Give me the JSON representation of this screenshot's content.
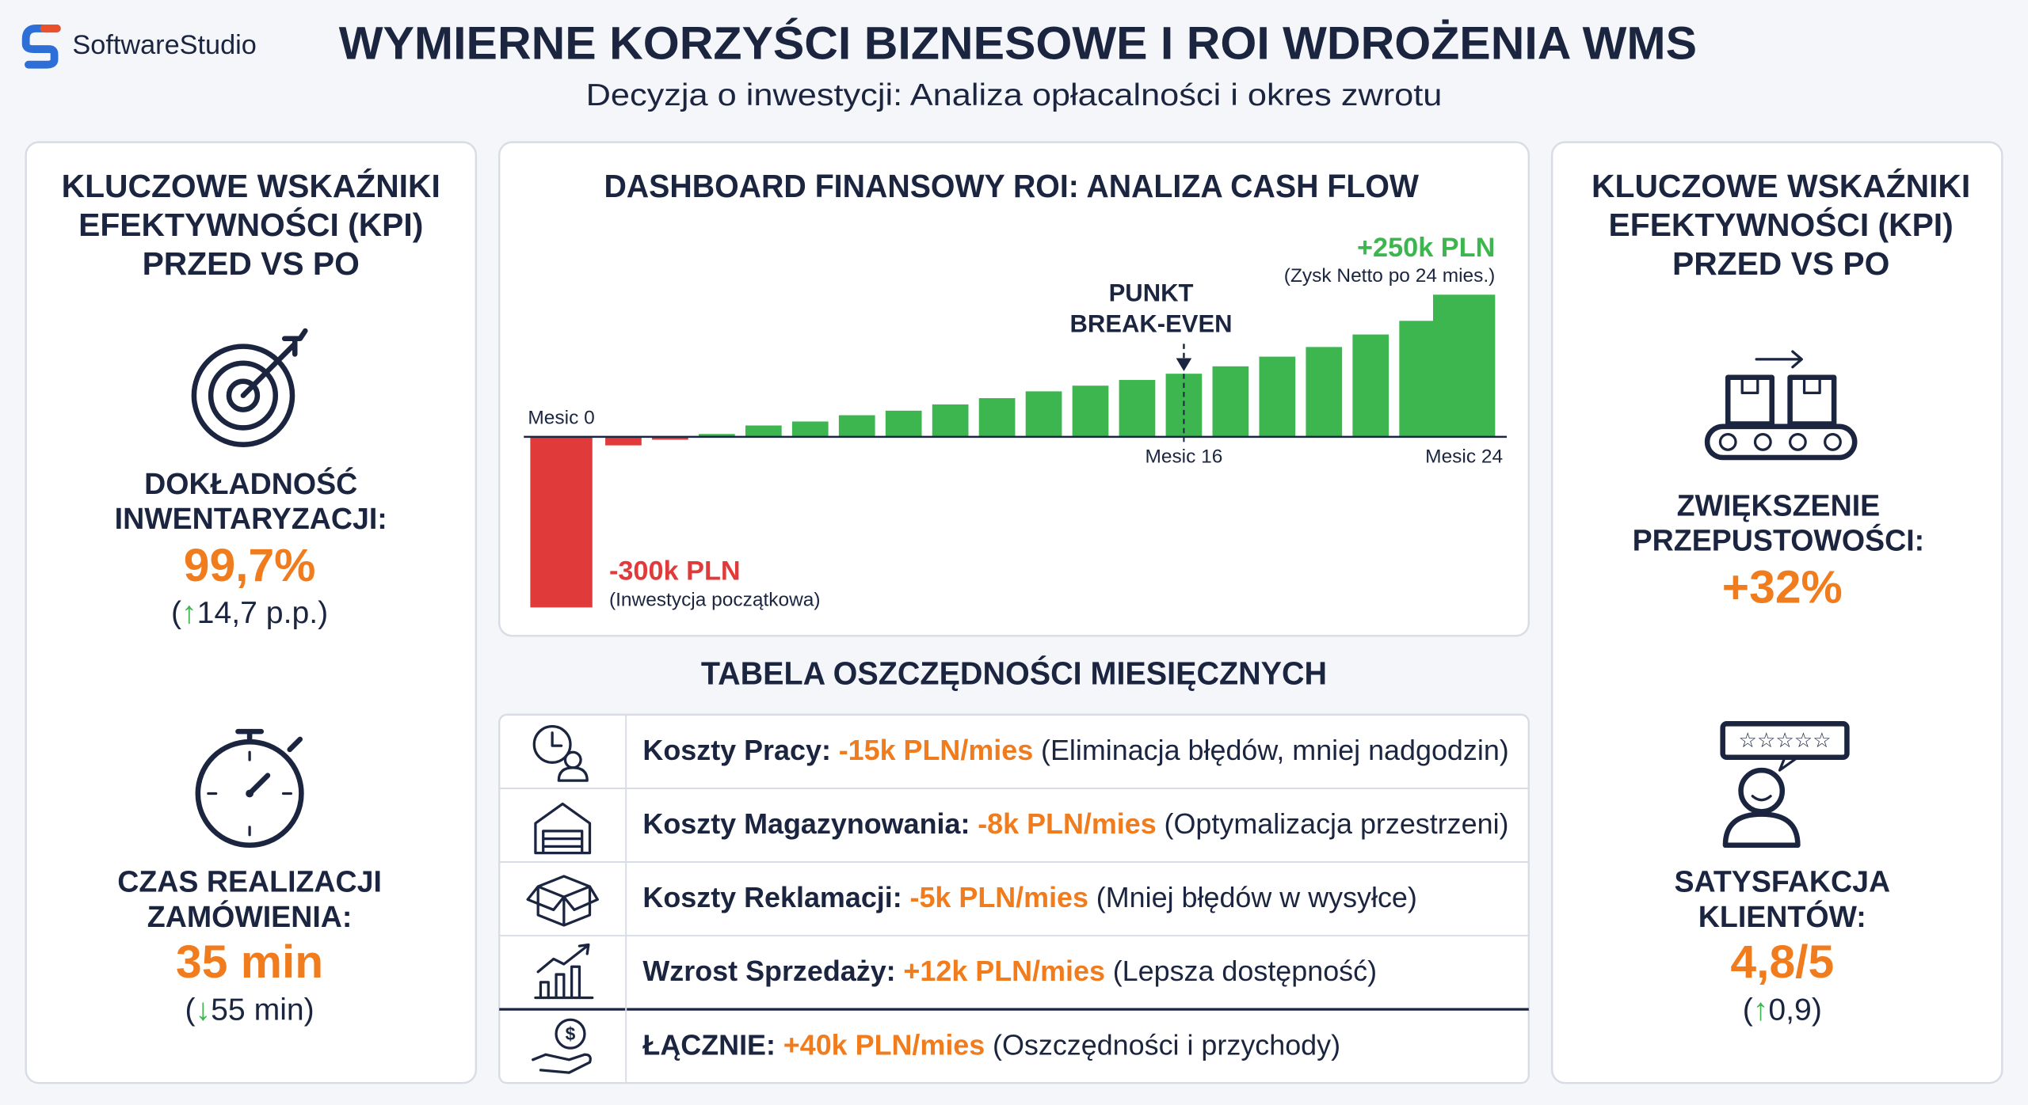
{
  "header": {
    "brand": "SoftwareStudio",
    "title": "WYMIERNE KORZYŚCI BIZNESOWE I ROI WDROŻENIA WMS",
    "subtitle": "Decyzja o inwestycji: Analiza opłacalności i okres zwrotu"
  },
  "left_panel": {
    "title_lines": [
      "KLUCZOWE WSKAŹNIKI",
      "EFEKTYWNOŚCI (KPI)",
      "PRZED VS PO"
    ],
    "kpis": [
      {
        "label_lines": [
          "DOKŁADNOŚĆ",
          "INWENTARYZACJI:"
        ],
        "value": "99,7%",
        "change_parts": [
          "(",
          "↑",
          "14,7 p.p.)"
        ]
      },
      {
        "label_lines": [
          "CZAS REALIZACJI",
          "ZAMÓWIENIA:"
        ],
        "value": "35 min",
        "change_parts": [
          "(",
          "↓",
          "55 min)"
        ]
      }
    ]
  },
  "chart_data": {
    "type": "bar",
    "title": "DASHBOARD FINANSOWY ROI: ANALIZA CASH FLOW",
    "categories": [
      "Mesic 0",
      null,
      null,
      null,
      null,
      null,
      null,
      null,
      null,
      null,
      null,
      null,
      null,
      "Mesic 16",
      null,
      null,
      null,
      null,
      null,
      "Mesic 24"
    ],
    "values": [
      -300,
      -15,
      -5,
      5,
      20,
      27,
      38,
      46,
      57,
      68,
      80,
      90,
      100,
      111,
      124,
      141,
      158,
      180,
      204,
      250
    ],
    "colors": {
      "negative": "#e03a3a",
      "positive": "#3db64f"
    },
    "ylim": [
      -300,
      250
    ],
    "annotations": {
      "break_even_lines": [
        "PUNKT",
        "BREAK-EVEN"
      ],
      "max_label": "+250k PLN",
      "max_note": "(Zysk Netto po 24 mies.)",
      "min_label": "-300k PLN",
      "min_note": "(Inwestycja początkowa)"
    }
  },
  "table": {
    "title": "TABELA OSZCZĘDNOŚCI MIESIĘCZNYCH",
    "rows": [
      {
        "label": "Koszty Pracy:",
        "amount": "-15k PLN/mies",
        "note": "(Eliminacja błędów, mniej nadgodzin)"
      },
      {
        "label": "Koszty Magazynowania:",
        "amount": "-8k PLN/mies",
        "note": "(Optymalizacja przestrzeni)"
      },
      {
        "label": "Koszty Reklamacji:",
        "amount": "-5k PLN/mies",
        "note": "(Mniej błędów w wysyłce)"
      },
      {
        "label": "Wzrost Sprzedaży:",
        "amount": "+12k PLN/mies",
        "note": "(Lepsza dostępność)"
      },
      {
        "label": "ŁĄCZNIE:",
        "amount": "+40k PLN/mies",
        "note": "(Oszczędności i przychody)"
      }
    ]
  },
  "right_panel": {
    "title_lines": [
      "KLUCZOWE WSKAŹNIKI",
      "EFEKTYWNOŚCI (KPI)",
      "PRZED VS PO"
    ],
    "kpis": [
      {
        "label_lines": [
          "ZWIĘKSZENIE",
          "PRZEPUSTOWOŚCI:"
        ],
        "value": "+32%"
      },
      {
        "label_lines": [
          "SATYSFAKCJA",
          "KLIENTÓW:"
        ],
        "value": "4,8/5",
        "change_parts": [
          "(",
          "↑",
          "0,9)"
        ]
      }
    ]
  }
}
